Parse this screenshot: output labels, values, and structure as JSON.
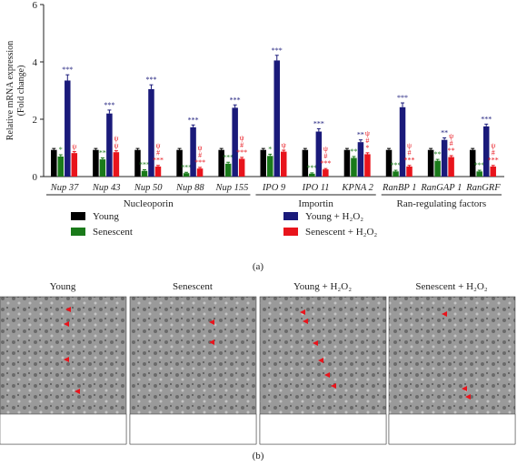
{
  "chart_data": {
    "type": "bar",
    "ylabel": [
      "Relative mRNA expression",
      "(Fold change)"
    ],
    "categories": [
      "Nup 37",
      "Nup 43",
      "Nup 50",
      "Nup 88",
      "Nup 155",
      "IPO 9",
      "IPO 11",
      "KPNA 2",
      "RanBP 1",
      "RanGAP 1",
      "RanGRF"
    ],
    "groups": [
      {
        "name": "Nucleoporin",
        "start": 0,
        "end": 4
      },
      {
        "name": "Importin",
        "start": 5,
        "end": 7
      },
      {
        "name": "Ran-regulating factors",
        "start": 8,
        "end": 10
      }
    ],
    "series": [
      {
        "name": "Young",
        "color": "#000000",
        "values": [
          0.93,
          0.93,
          0.93,
          0.93,
          0.93,
          0.93,
          0.93,
          0.93,
          0.93,
          0.93,
          0.93
        ],
        "errors": [
          0.05,
          0.05,
          0.05,
          0.05,
          0.05,
          0.05,
          0.05,
          0.05,
          0.05,
          0.05,
          0.05
        ]
      },
      {
        "name": "Senescent",
        "color": "#1a7a1a",
        "values": [
          0.7,
          0.6,
          0.2,
          0.12,
          0.45,
          0.72,
          0.1,
          0.65,
          0.18,
          0.55,
          0.18
        ],
        "errors": [
          0.06,
          0.05,
          0.04,
          0.03,
          0.05,
          0.06,
          0.03,
          0.05,
          0.04,
          0.05,
          0.04
        ],
        "annotations": [
          [
            "*"
          ],
          [
            "**"
          ],
          [
            "***"
          ],
          [
            "***"
          ],
          [
            "***"
          ],
          [
            "*"
          ],
          [
            "***"
          ],
          [
            "**"
          ],
          [
            "***"
          ],
          [
            "**"
          ],
          [
            "***"
          ]
        ]
      },
      {
        "name": "Young + H₂O₂",
        "color": "#1a1a7a",
        "values": [
          3.35,
          2.2,
          3.05,
          1.72,
          2.4,
          4.05,
          1.57,
          1.2,
          2.42,
          1.28,
          1.75
        ],
        "errors": [
          0.2,
          0.12,
          0.15,
          0.08,
          0.1,
          0.18,
          0.1,
          0.08,
          0.15,
          0.07,
          0.08
        ],
        "annotations": [
          [
            "***"
          ],
          [
            "***"
          ],
          [
            "***"
          ],
          [
            "***"
          ],
          [
            "***"
          ],
          [
            "***"
          ],
          [
            "***"
          ],
          [
            "**"
          ],
          [
            "***"
          ],
          [
            "**"
          ],
          [
            "***"
          ]
        ]
      },
      {
        "name": "Senescent + H₂O₂",
        "color": "#e8141c",
        "values": [
          0.82,
          0.85,
          0.35,
          0.28,
          0.62,
          0.87,
          0.25,
          0.78,
          0.35,
          0.68,
          0.35
        ],
        "errors": [
          0.05,
          0.05,
          0.04,
          0.04,
          0.05,
          0.05,
          0.03,
          0.05,
          0.04,
          0.05,
          0.04
        ],
        "annotations": [
          [
            "ψ"
          ],
          [
            "ψ",
            "ψ"
          ],
          [
            "ψ",
            "#",
            "***"
          ],
          [
            "ψ",
            "#",
            "***"
          ],
          [
            "ψ",
            "#",
            "***"
          ],
          [
            "ψ"
          ],
          [
            "ψ",
            "#",
            "***"
          ],
          [
            "ψ",
            "#",
            "*"
          ],
          [
            "ψ",
            "#",
            "***"
          ],
          [
            "ψ",
            "#",
            "**"
          ],
          [
            "ψ",
            "#",
            "***"
          ]
        ]
      }
    ],
    "ylim": [
      0,
      6
    ],
    "yticks": [
      0,
      2,
      4,
      6
    ],
    "panel_labels": [
      "(a)",
      "(b)"
    ],
    "image_titles": [
      "Young",
      "Senescent",
      "Young + H₂O₂",
      "Senescent + H₂O₂"
    ]
  }
}
